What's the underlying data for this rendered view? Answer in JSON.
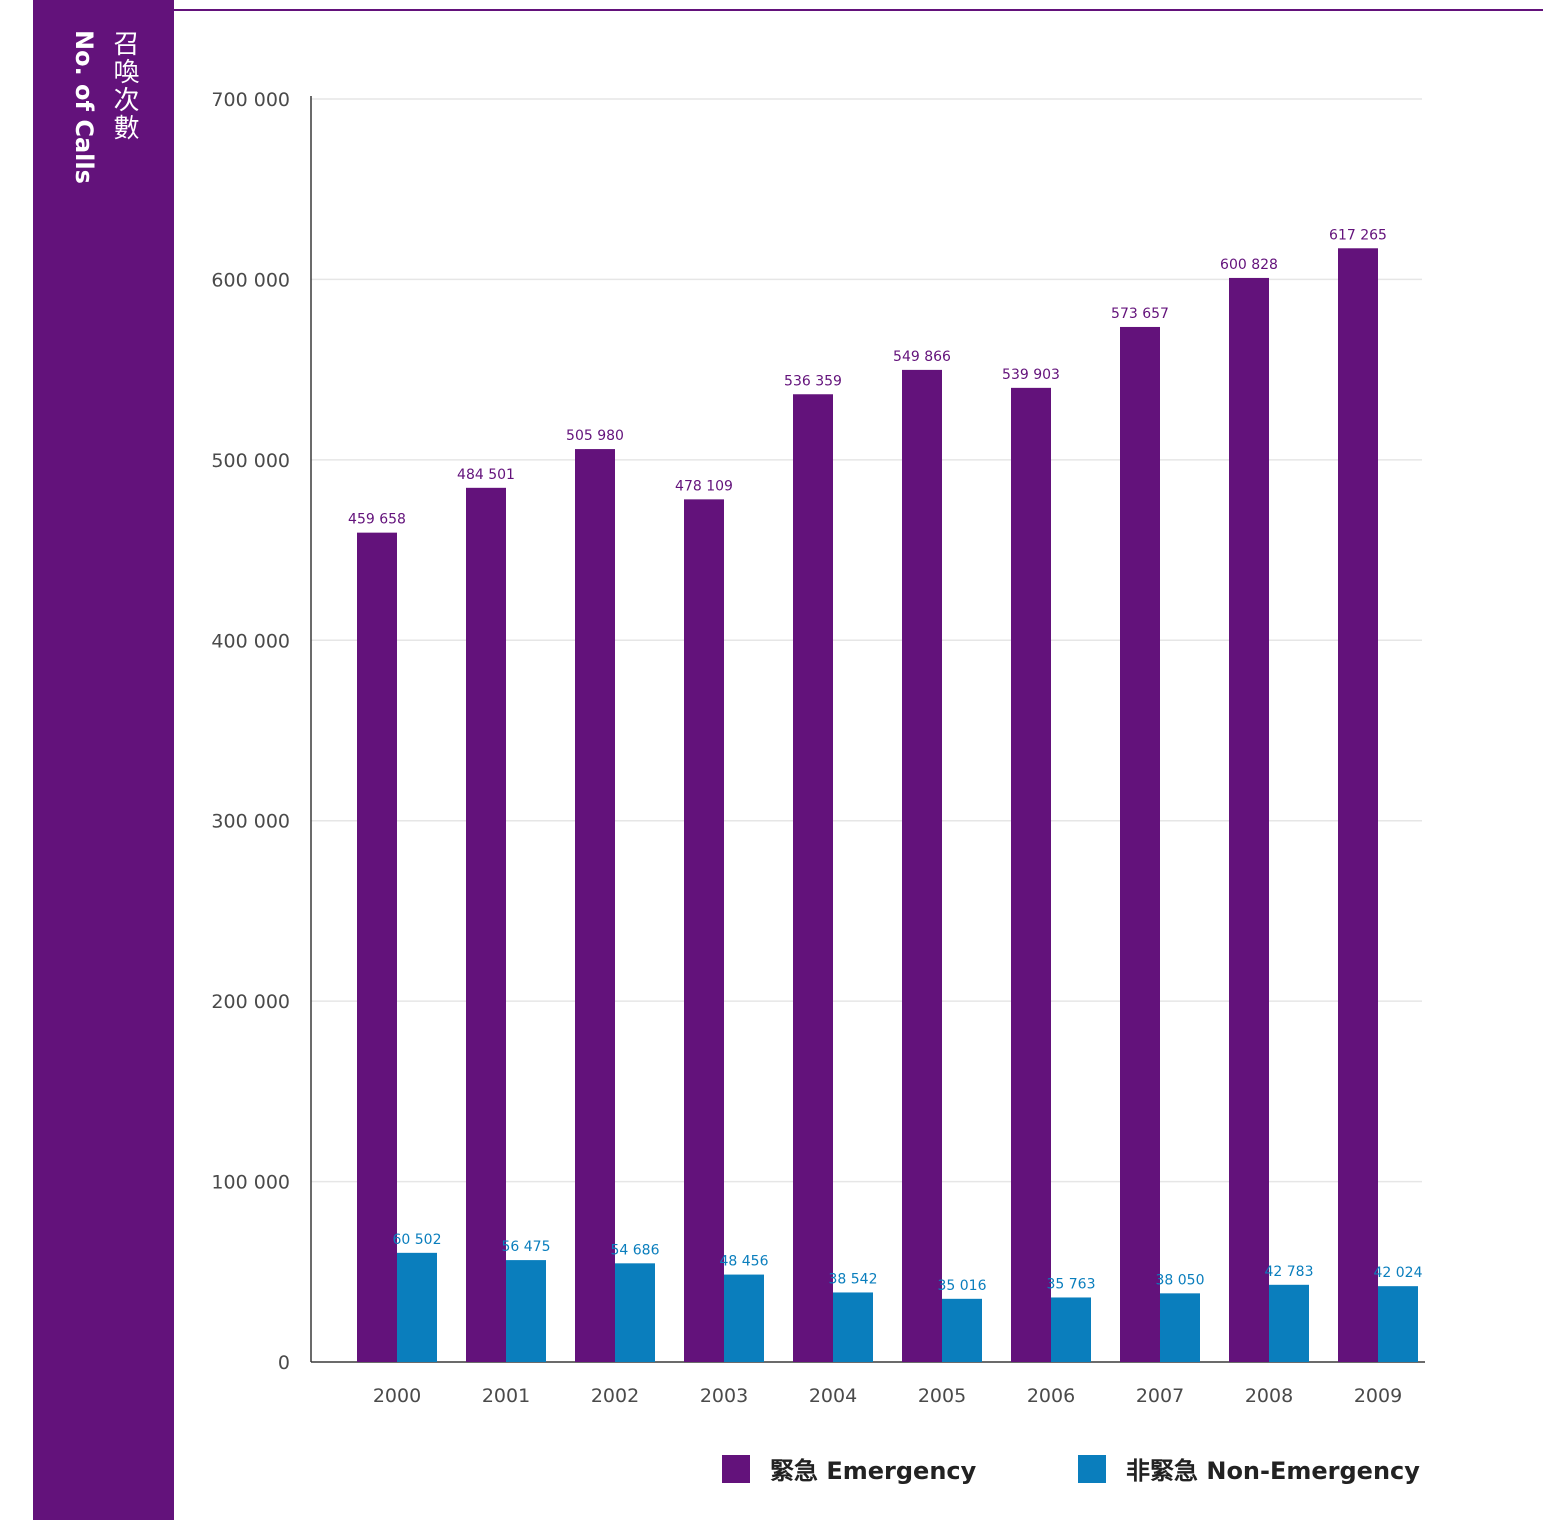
{
  "colors": {
    "emergency": "#63127b",
    "non_emergency": "#0a7ebd",
    "sidebar": "#63127b",
    "grid": "#e6e6e6",
    "axis": "#3a3a3a"
  },
  "axis_title": {
    "zh": "召喚次數",
    "en": "No. of Calls"
  },
  "legend": {
    "emergency": "緊急  Emergency",
    "non_emergency": "非緊急  Non-Emergency"
  },
  "chart_data": {
    "type": "bar",
    "categories": [
      "2000",
      "2001",
      "2002",
      "2003",
      "2004",
      "2005",
      "2006",
      "2007",
      "2008",
      "2009"
    ],
    "series": [
      {
        "name": "緊急  Emergency",
        "color": "#63127b",
        "values": [
          459658,
          484501,
          505980,
          478109,
          536359,
          549866,
          539903,
          573657,
          600828,
          617265
        ],
        "labels": [
          "459 658",
          "484 501",
          "505 980",
          "478 109",
          "536 359",
          "549 866",
          "539 903",
          "573 657",
          "600 828",
          "617 265"
        ]
      },
      {
        "name": "非緊急  Non-Emergency",
        "color": "#0a7ebd",
        "values": [
          60502,
          56475,
          54686,
          48456,
          38542,
          35016,
          35763,
          38050,
          42783,
          42024
        ],
        "labels": [
          "60 502",
          "56 475",
          "54 686",
          "48 456",
          "38 542",
          "35 016",
          "35 763",
          "38 050",
          "42 783",
          "42 024"
        ]
      }
    ],
    "ylabel": "召喚次數 No. of Calls",
    "ylim": [
      0,
      700000
    ],
    "yticks": [
      0,
      100000,
      200000,
      300000,
      400000,
      500000,
      600000,
      700000
    ],
    "ytick_labels": [
      "0",
      "100 000",
      "200 000",
      "300 000",
      "400 000",
      "500 000",
      "600 000",
      "700 000"
    ],
    "grid": true,
    "legend_position": "bottom"
  }
}
